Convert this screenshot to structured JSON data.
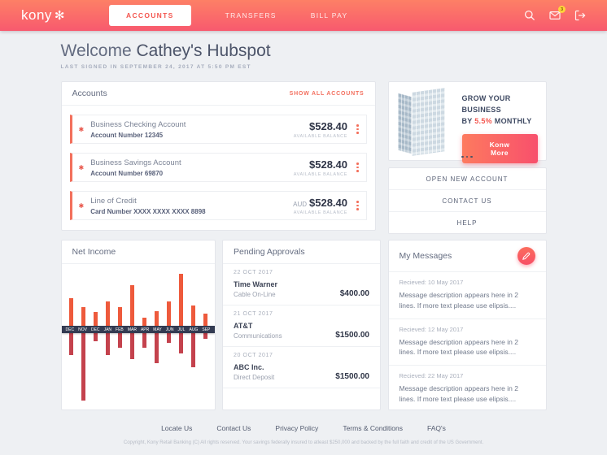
{
  "header": {
    "logo_text": "kony",
    "logo_mark": "✻",
    "nav": [
      {
        "label": "ACCOUNTS"
      },
      {
        "label": "TRANSFERS"
      },
      {
        "label": "BILL PAY"
      }
    ],
    "mail_badge": "3"
  },
  "welcome": {
    "greeting": "Welcome ",
    "name": "Cathey's Hubspot",
    "last_signed_in": "LAST SIGNED IN SEPTEMBER 24, 2017 AT 5:50 PM EST"
  },
  "accounts": {
    "title": "Accounts",
    "show_all": "SHOW ALL ACCOUNTS",
    "star": "✱",
    "items": [
      {
        "name": "Business Checking Account",
        "number": "Account Number 12345",
        "currency": "",
        "amount": "$528.40",
        "balance_label": "AVAILABLE BALANCE"
      },
      {
        "name": "Business Savings Account",
        "number": "Account Number 69870",
        "currency": "",
        "amount": "$528.40",
        "balance_label": "AVAILABLE BALANCE"
      },
      {
        "name": "Line of Credit",
        "number": "Card Number XXXX XXXX XXXX 8898",
        "currency": "AUD",
        "amount": "$528.40",
        "balance_label": "AVAILABLE BALANCE"
      }
    ]
  },
  "promo": {
    "line1": "GROW YOUR BUSINESS",
    "line2_prefix": "BY ",
    "highlight": "5.5%",
    "line2_suffix": " MONTHLY",
    "button_label": "Konw More"
  },
  "quick_links": [
    {
      "label": "OPEN NEW ACCOUNT"
    },
    {
      "label": "CONTACT US"
    },
    {
      "label": "HELP"
    }
  ],
  "net_income": {
    "title": "Net Income"
  },
  "chart_data": {
    "type": "bar",
    "title": "Net Income",
    "categories": [
      "DEC",
      "NOV",
      "DEC",
      "JAN",
      "FEB",
      "MAR",
      "APR",
      "MAY",
      "JUN",
      "JUL",
      "AUG",
      "SEP"
    ],
    "series": [
      {
        "name": "income",
        "values": [
          34,
          23,
          17,
          30,
          23,
          50,
          10,
          18,
          30,
          64,
          25,
          15
        ]
      },
      {
        "name": "expenses",
        "values": [
          -27,
          -83,
          -10,
          -27,
          -18,
          -32,
          -18,
          -37,
          -12,
          -25,
          -42,
          -7
        ]
      }
    ],
    "ylim": [
      -90,
      70
    ],
    "grid": false,
    "legend": "none",
    "xlabel": "",
    "ylabel": "",
    "colors": {
      "positive": "#ee5a3c",
      "negative": "#c4424d",
      "axis_band": "#333b52"
    }
  },
  "pending_approvals": {
    "title": "Pending Approvals",
    "items": [
      {
        "date": "22 OCT 2017",
        "payee": "Time Warner",
        "category": "Cable On-Line",
        "amount": "$400.00"
      },
      {
        "date": "21 OCT 2017",
        "payee": "AT&T",
        "category": "Communications",
        "amount": "$1500.00"
      },
      {
        "date": "20 OCT 2017",
        "payee": "ABC Inc.",
        "category": "Direct Deposit",
        "amount": "$1500.00"
      }
    ]
  },
  "messages": {
    "title": "My Messages",
    "items": [
      {
        "received": "Recieved: 10 May 2017",
        "body": "Message description appears here in 2 lines. If more text please use elipsis...."
      },
      {
        "received": "Recieved: 12 May 2017",
        "body": "Message description appears here in 2 lines. If more text please use elipsis...."
      },
      {
        "received": "Recieved: 22 May 2017",
        "body": "Message description appears here in 2 lines. If more text please use elipsis...."
      }
    ]
  },
  "footer": {
    "links": [
      {
        "label": "Locate Us"
      },
      {
        "label": "Contact Us"
      },
      {
        "label": "Privacy Policy"
      },
      {
        "label": "Terms & Conditions"
      },
      {
        "label": "FAQ's"
      }
    ],
    "copyright": "Copyright, Kony Retail Banking (C) All rights reserved.  Your savings federally insured to atleast $250,000 and backed by the full faith and credit of the US Government."
  },
  "colors": {
    "accent": "#f4564f",
    "header_gradient_top": "#fd8066",
    "header_gradient_bottom": "#f85a6e",
    "badge": "#ffd43a"
  }
}
